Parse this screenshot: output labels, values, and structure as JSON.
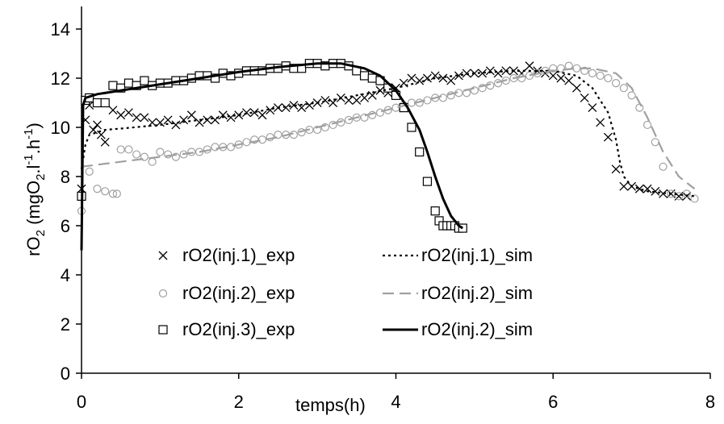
{
  "chart_data": {
    "type": "scatter",
    "xlabel": "temps(h)",
    "ylabel": "rO",
    "ylabel_sub": "2",
    "ylabel_unit": " (mgO",
    "ylabel_unit_sub": "2",
    "ylabel_unit_rest": ".l",
    "ylabel_sup1": "-1",
    "ylabel_mid": ".h",
    "ylabel_sup2": "-1",
    "ylabel_close": ")",
    "xlim": [
      0,
      8
    ],
    "ylim": [
      0,
      15
    ],
    "xticks": [
      0,
      2,
      4,
      6,
      8
    ],
    "yticks": [
      0,
      2,
      4,
      6,
      8,
      10,
      12,
      14
    ],
    "grid": false,
    "legend_position": "bottom-left-center",
    "series": [
      {
        "name": "rO2(inj.1)_exp",
        "kind": "marker",
        "marker": "x",
        "color": "#000000",
        "x": [
          0.0,
          0.05,
          0.1,
          0.15,
          0.2,
          0.25,
          0.3,
          0.4,
          0.5,
          0.6,
          0.7,
          0.8,
          0.9,
          1.0,
          1.1,
          1.2,
          1.3,
          1.4,
          1.5,
          1.6,
          1.7,
          1.8,
          1.9,
          2.0,
          2.1,
          2.2,
          2.3,
          2.4,
          2.5,
          2.6,
          2.7,
          2.8,
          2.9,
          3.0,
          3.1,
          3.2,
          3.3,
          3.4,
          3.5,
          3.6,
          3.7,
          3.8,
          3.9,
          4.0,
          4.1,
          4.2,
          4.3,
          4.4,
          4.5,
          4.6,
          4.7,
          4.8,
          4.9,
          5.0,
          5.1,
          5.2,
          5.3,
          5.4,
          5.5,
          5.6,
          5.7,
          5.8,
          5.9,
          6.0,
          6.1,
          6.2,
          6.3,
          6.4,
          6.5,
          6.6,
          6.7,
          6.8,
          6.9,
          7.0,
          7.1,
          7.2,
          7.3,
          7.4,
          7.5,
          7.6,
          7.7
        ],
        "y": [
          7.5,
          10.3,
          10.9,
          9.9,
          10.1,
          9.7,
          9.4,
          10.7,
          10.5,
          10.6,
          10.4,
          10.4,
          10.2,
          10.2,
          10.3,
          10.1,
          10.3,
          10.5,
          10.2,
          10.3,
          10.3,
          10.5,
          10.4,
          10.5,
          10.6,
          10.6,
          10.5,
          10.7,
          10.8,
          10.8,
          10.9,
          10.8,
          10.9,
          11.0,
          11.1,
          11.0,
          11.2,
          11.1,
          11.1,
          11.2,
          11.3,
          11.5,
          11.4,
          11.6,
          11.8,
          12.0,
          11.9,
          12.0,
          12.1,
          12.0,
          11.9,
          12.1,
          12.2,
          12.2,
          12.2,
          12.3,
          12.2,
          12.3,
          12.3,
          12.2,
          12.5,
          12.3,
          12.2,
          12.1,
          12.0,
          11.9,
          11.6,
          11.2,
          10.8,
          10.2,
          9.6,
          8.3,
          7.6,
          7.6,
          7.5,
          7.5,
          7.4,
          7.3,
          7.3,
          7.2,
          7.2
        ]
      },
      {
        "name": "rO2(inj.2)_exp",
        "kind": "marker",
        "marker": "circle",
        "color": "#a0a0a0",
        "x": [
          0.0,
          0.1,
          0.2,
          0.3,
          0.4,
          0.45,
          0.5,
          0.6,
          0.7,
          0.8,
          0.9,
          1.0,
          1.1,
          1.2,
          1.3,
          1.4,
          1.5,
          1.6,
          1.7,
          1.8,
          1.9,
          2.0,
          2.1,
          2.2,
          2.3,
          2.4,
          2.5,
          2.6,
          2.7,
          2.8,
          2.9,
          3.0,
          3.1,
          3.2,
          3.3,
          3.4,
          3.5,
          3.6,
          3.7,
          3.8,
          3.9,
          4.0,
          4.1,
          4.2,
          4.3,
          4.4,
          4.5,
          4.6,
          4.7,
          4.8,
          4.9,
          5.0,
          5.1,
          5.2,
          5.3,
          5.4,
          5.5,
          5.6,
          5.7,
          5.8,
          5.9,
          6.0,
          6.1,
          6.2,
          6.3,
          6.4,
          6.5,
          6.6,
          6.7,
          6.8,
          6.9,
          7.0,
          7.1,
          7.2,
          7.3,
          7.4,
          7.5,
          7.6,
          7.7,
          7.8
        ],
        "y": [
          6.6,
          8.2,
          7.5,
          7.4,
          7.3,
          7.3,
          9.1,
          9.1,
          8.9,
          8.8,
          8.6,
          9.0,
          8.9,
          8.8,
          8.9,
          9.0,
          9.0,
          9.1,
          9.2,
          9.2,
          9.2,
          9.3,
          9.4,
          9.5,
          9.5,
          9.6,
          9.7,
          9.7,
          9.7,
          9.8,
          9.9,
          9.9,
          10.0,
          10.1,
          10.2,
          10.3,
          10.4,
          10.4,
          10.5,
          10.6,
          10.7,
          10.8,
          10.9,
          11.0,
          11.0,
          11.1,
          11.2,
          11.2,
          11.3,
          11.4,
          11.4,
          11.5,
          11.6,
          11.7,
          11.8,
          11.9,
          12.0,
          12.0,
          12.1,
          12.2,
          12.3,
          12.4,
          12.4,
          12.5,
          12.4,
          12.3,
          12.2,
          12.1,
          12.0,
          11.8,
          11.6,
          11.3,
          10.8,
          10.1,
          9.4,
          8.4,
          7.3,
          7.2,
          7.3,
          7.1
        ]
      },
      {
        "name": "rO2(inj.3)_exp",
        "kind": "marker",
        "marker": "square",
        "color": "#000000",
        "x": [
          0.0,
          0.05,
          0.1,
          0.2,
          0.3,
          0.4,
          0.5,
          0.6,
          0.7,
          0.8,
          0.9,
          1.0,
          1.1,
          1.2,
          1.3,
          1.4,
          1.5,
          1.6,
          1.7,
          1.8,
          1.9,
          2.0,
          2.1,
          2.2,
          2.3,
          2.4,
          2.5,
          2.6,
          2.7,
          2.8,
          2.9,
          3.0,
          3.1,
          3.2,
          3.3,
          3.4,
          3.5,
          3.6,
          3.7,
          3.8,
          3.9,
          4.0,
          4.1,
          4.2,
          4.3,
          4.4,
          4.5,
          4.55,
          4.6,
          4.65,
          4.7,
          4.75,
          4.8,
          4.85
        ],
        "y": [
          7.2,
          11.1,
          11.2,
          11.0,
          11.0,
          11.7,
          11.6,
          11.8,
          11.7,
          11.9,
          11.7,
          11.8,
          11.8,
          11.9,
          11.9,
          12.0,
          12.1,
          12.1,
          12.0,
          12.2,
          12.1,
          12.2,
          12.3,
          12.3,
          12.3,
          12.4,
          12.4,
          12.5,
          12.4,
          12.4,
          12.6,
          12.6,
          12.5,
          12.6,
          12.6,
          12.5,
          12.3,
          12.1,
          12.0,
          11.9,
          11.6,
          11.3,
          10.8,
          10.0,
          9.0,
          7.8,
          6.6,
          6.2,
          6.0,
          6.0,
          6.0,
          6.0,
          5.9,
          5.9
        ]
      },
      {
        "name": "rO2(inj.1)_sim",
        "kind": "line",
        "dash": "dotted",
        "color": "#000000",
        "x": [
          0.0,
          0.05,
          0.1,
          0.2,
          0.3,
          0.5,
          1.0,
          1.5,
          2.0,
          2.5,
          3.0,
          3.5,
          4.0,
          4.5,
          5.0,
          5.5,
          6.0,
          6.3,
          6.5,
          6.7,
          6.8,
          6.85,
          6.9,
          7.0,
          7.2,
          7.5,
          7.8
        ],
        "y": [
          8.3,
          9.3,
          9.7,
          9.8,
          9.9,
          9.95,
          10.1,
          10.3,
          10.5,
          10.8,
          11.0,
          11.3,
          11.6,
          12.0,
          12.2,
          12.3,
          12.3,
          12.1,
          11.6,
          10.6,
          9.5,
          8.6,
          8.0,
          7.6,
          7.4,
          7.3,
          7.2
        ]
      },
      {
        "name": "rO2(inj.2)_sim",
        "kind": "line",
        "dash": "dashed",
        "color": "#a0a0a0",
        "x": [
          0.0,
          0.5,
          1.0,
          1.5,
          2.0,
          2.5,
          3.0,
          3.5,
          4.0,
          4.5,
          5.0,
          5.5,
          6.0,
          6.3,
          6.5,
          6.8,
          7.0,
          7.2,
          7.4,
          7.6,
          7.8
        ],
        "y": [
          8.4,
          8.6,
          8.8,
          9.0,
          9.3,
          9.6,
          10.0,
          10.4,
          10.8,
          11.2,
          11.6,
          12.0,
          12.3,
          12.4,
          12.4,
          12.2,
          11.6,
          10.4,
          9.0,
          8.0,
          7.5
        ]
      },
      {
        "name": "rO2(inj.2)_sim",
        "kind": "line",
        "dash": "solid",
        "color": "#000000",
        "x": [
          0.0,
          0.02,
          0.05,
          0.2,
          0.5,
          1.0,
          1.5,
          2.0,
          2.5,
          3.0,
          3.3,
          3.6,
          3.8,
          4.0,
          4.15,
          4.3,
          4.4,
          4.5,
          4.6,
          4.7,
          4.8,
          4.85
        ],
        "y": [
          5.0,
          10.9,
          11.2,
          11.35,
          11.5,
          11.75,
          12.0,
          12.25,
          12.45,
          12.6,
          12.6,
          12.4,
          12.1,
          11.5,
          10.8,
          9.9,
          9.0,
          8.0,
          7.1,
          6.4,
          6.0,
          5.9
        ]
      }
    ],
    "legend_rows": [
      [
        "rO2(inj.1)_exp",
        "rO2(inj.1)_sim"
      ],
      [
        "rO2(inj.2)_exp",
        "rO2(inj.2)_sim"
      ],
      [
        "rO2(inj.3)_exp",
        "rO2(inj.2)_sim"
      ]
    ]
  }
}
